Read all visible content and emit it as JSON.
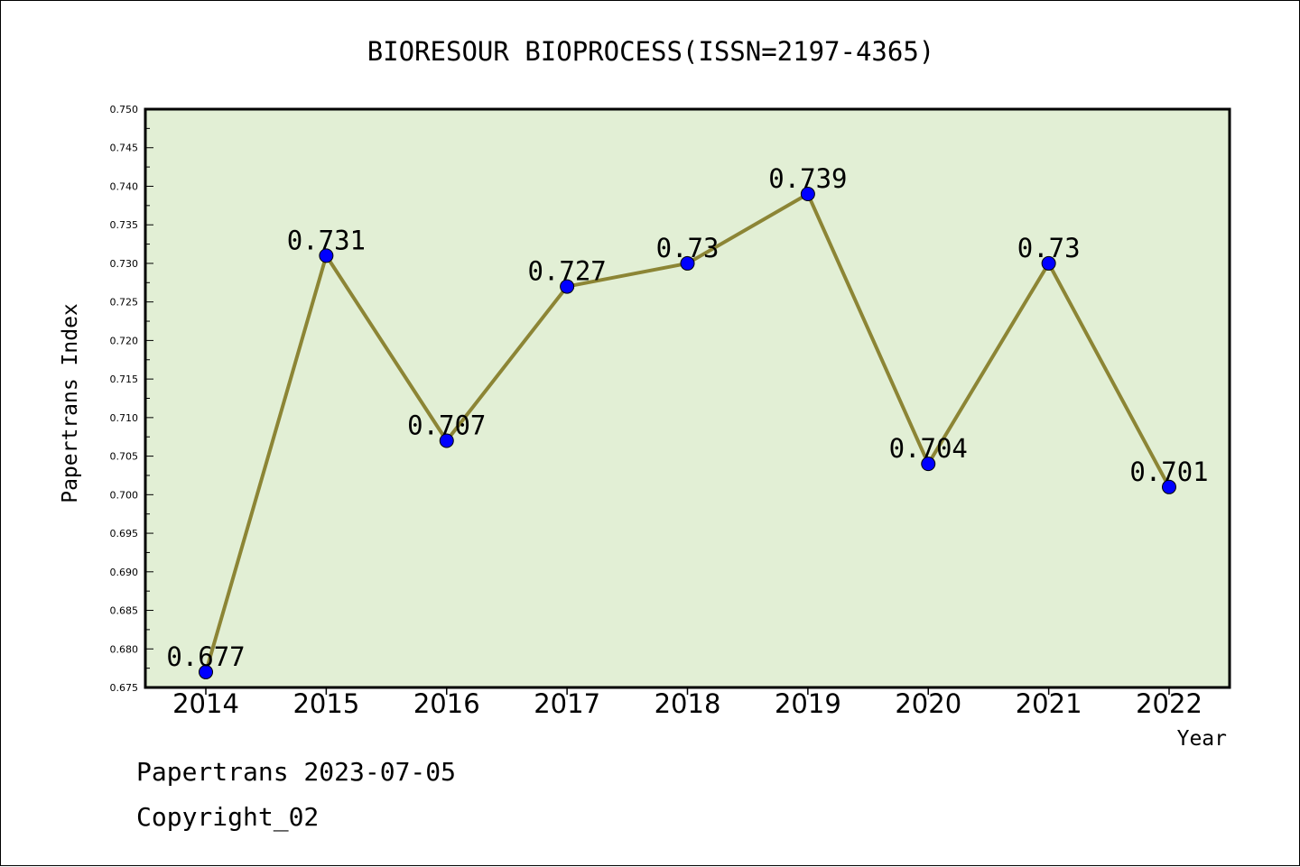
{
  "chart_data": {
    "type": "line",
    "title": "BIORESOUR BIOPROCESS(ISSN=2197-4365)",
    "xlabel": "Year",
    "ylabel": "Papertrans Index",
    "categories": [
      "2014",
      "2015",
      "2016",
      "2017",
      "2018",
      "2019",
      "2020",
      "2021",
      "2022"
    ],
    "values": [
      0.677,
      0.731,
      0.707,
      0.727,
      0.73,
      0.739,
      0.704,
      0.73,
      0.701
    ],
    "data_labels": [
      "0.677",
      "0.731",
      "0.707",
      "0.727",
      "0.73",
      "0.739",
      "0.704",
      "0.73",
      "0.701"
    ],
    "ylim": [
      0.675,
      0.75
    ],
    "yticks": [
      "0.675",
      "0.680",
      "0.685",
      "0.690",
      "0.695",
      "0.700",
      "0.705",
      "0.710",
      "0.715",
      "0.720",
      "0.725",
      "0.730",
      "0.735",
      "0.740",
      "0.745",
      "0.750"
    ],
    "grid": false,
    "colors": {
      "plot_background": "#e2efd5",
      "line": "#8c8535",
      "marker": "#0000ff"
    }
  },
  "footer": {
    "line1": "Papertrans 2023-07-05",
    "line2": "Copyright_02"
  }
}
